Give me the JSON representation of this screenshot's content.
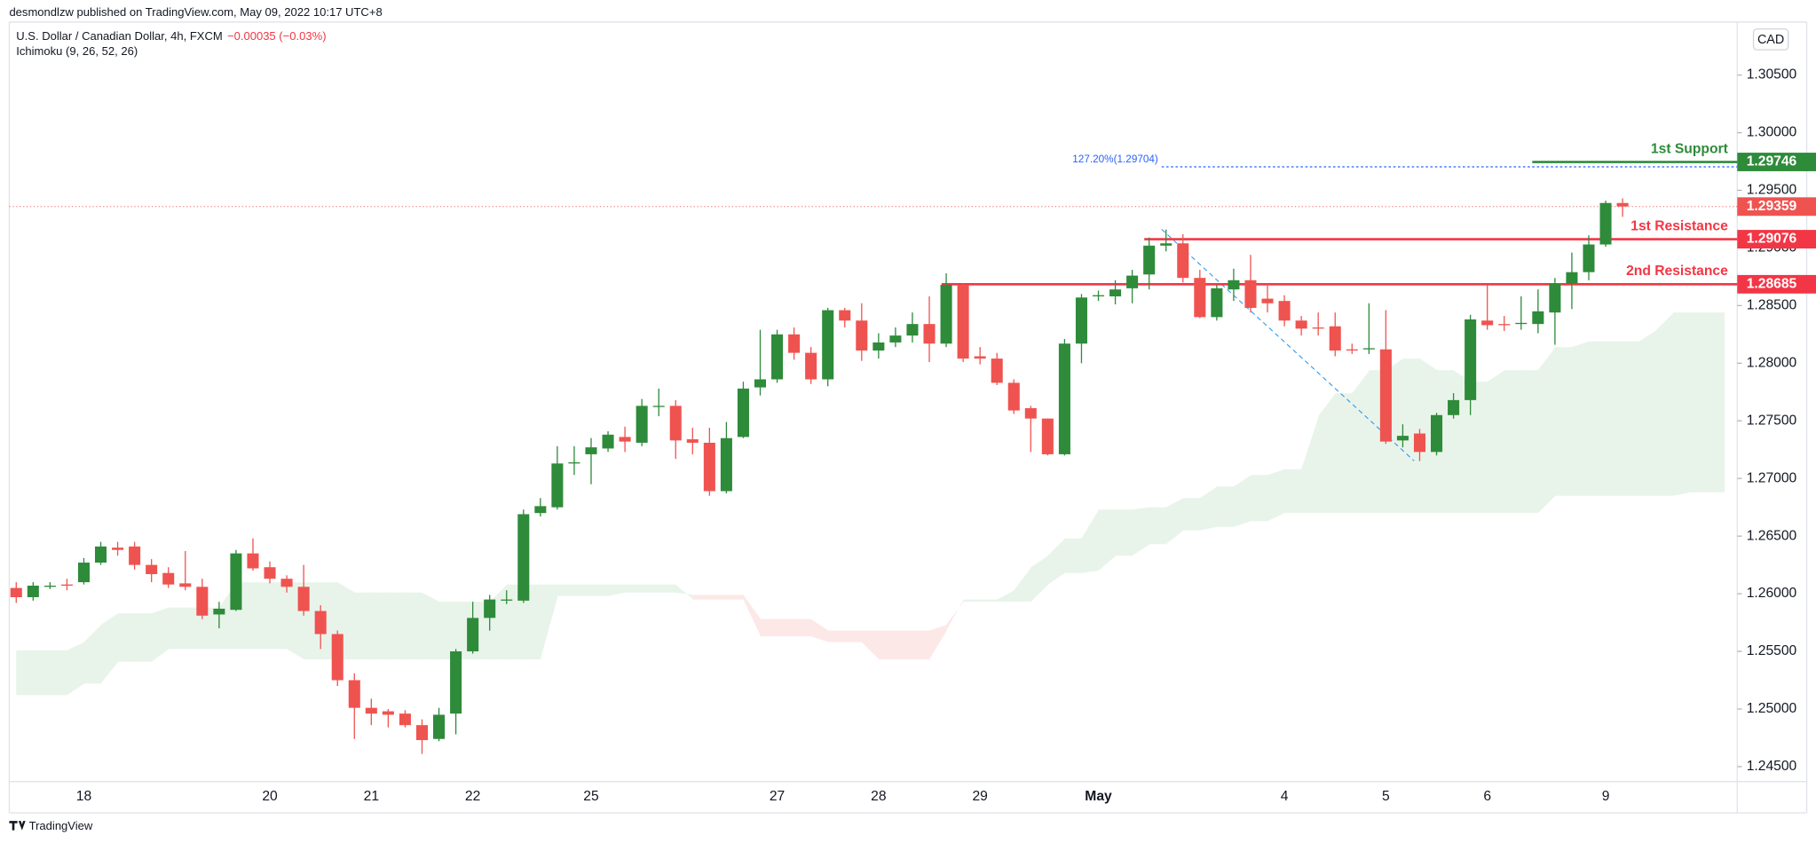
{
  "header": {
    "publisher": "desmondlzw published on TradingView.com, May 09, 2022 10:17 UTC+8",
    "symbol": "U.S. Dollar / Canadian Dollar, 4h, FXCM",
    "change": "−0.00035 (−0.03%)",
    "indicator": "Ichimoku (9, 26, 52, 26)"
  },
  "footer": "TradingView",
  "chart_data": {
    "type": "candlestick",
    "currency": "CAD",
    "categories": [
      null,
      null,
      null,
      null,
      "18",
      null,
      null,
      null,
      null,
      null,
      null,
      null,
      null,
      null,
      null,
      "20",
      null,
      null,
      null,
      null,
      null,
      "21",
      null,
      null,
      null,
      null,
      null,
      "22",
      null,
      null,
      null,
      null,
      null,
      null,
      "25",
      null,
      null,
      null,
      null,
      null,
      null,
      null,
      null,
      null,
      null,
      "27",
      null,
      null,
      null,
      null,
      null,
      "28",
      null,
      null,
      null,
      null,
      null,
      "29",
      null,
      null,
      null,
      null,
      null,
      null,
      "May",
      null,
      null,
      null,
      null,
      null,
      null,
      null,
      null,
      null,
      null,
      "4",
      null,
      null,
      null,
      null,
      null,
      "5",
      null,
      null,
      null,
      null,
      null,
      "6",
      null,
      null,
      null,
      null,
      null,
      null,
      "9",
      null,
      null,
      null,
      null,
      null,
      null,
      null
    ],
    "open": [
      1.2605,
      1.2597,
      1.2607,
      1.2608,
      1.261,
      1.2627,
      1.264,
      1.2641,
      1.2625,
      1.2618,
      1.2609,
      1.2606,
      1.2582,
      1.2586,
      1.2635,
      1.2623,
      1.2613,
      1.2606,
      1.2585,
      1.2565,
      1.2525,
      1.2501,
      1.2498,
      1.2496,
      1.2486,
      1.2474,
      1.2496,
      1.255,
      1.2579,
      1.2595,
      1.2594,
      1.267,
      1.2675,
      1.2714,
      1.2721,
      1.2726,
      1.2736,
      1.2731,
      1.2763,
      1.2763,
      1.2734,
      1.2731,
      1.2689,
      1.2736,
      1.2779,
      1.2786,
      1.2825,
      1.2809,
      1.2786,
      1.2846,
      1.2837,
      1.2811,
      1.2818,
      1.2824,
      1.2834,
      1.2817,
      1.2868,
      1.2806,
      1.2804,
      1.2783,
      1.2761,
      1.2752,
      1.2721,
      1.2817,
      1.2858,
      1.2858,
      1.2865,
      1.2877,
      1.2902,
      1.2904,
      1.2874,
      1.284,
      1.2864,
      1.2872,
      1.2856,
      1.2854,
      1.2837,
      1.2831,
      1.2832,
      1.2812,
      1.2812,
      1.2812,
      1.2733,
      1.2739,
      1.2723,
      1.2755,
      1.2768,
      1.2837,
      1.2834,
      1.2834,
      1.2834,
      1.2844,
      1.2869,
      1.2879,
      1.2903,
      1.2939,
      null,
      null,
      null,
      null,
      null,
      null
    ],
    "high": [
      1.261,
      1.261,
      1.261,
      1.2613,
      1.2631,
      1.2645,
      1.2645,
      1.2645,
      1.263,
      1.2623,
      1.2637,
      1.2613,
      1.2593,
      1.2638,
      1.2648,
      1.2628,
      1.2616,
      1.2625,
      1.259,
      1.2568,
      1.2531,
      1.2509,
      1.25,
      1.2499,
      1.2491,
      1.2501,
      1.2552,
      1.2593,
      1.2599,
      1.2603,
      1.2673,
      1.2683,
      1.2728,
      1.2728,
      1.2735,
      1.2741,
      1.2745,
      1.2769,
      1.2778,
      1.2768,
      1.2744,
      1.2744,
      1.2749,
      1.2784,
      1.2829,
      1.2829,
      1.2831,
      1.2814,
      1.2848,
      1.2848,
      1.2852,
      1.2826,
      1.2831,
      1.2844,
      1.2858,
      1.2878,
      1.2869,
      1.2814,
      1.2809,
      1.2786,
      1.2763,
      1.2752,
      1.2821,
      1.286,
      1.2863,
      1.2872,
      1.2881,
      1.2909,
      1.2916,
      1.2912,
      1.2881,
      1.2868,
      1.2882,
      1.2894,
      1.2869,
      1.2859,
      1.2841,
      1.2844,
      1.2844,
      1.2817,
      1.2852,
      1.2846,
      1.2747,
      1.2743,
      1.2757,
      1.2774,
      1.2842,
      1.2868,
      1.2841,
      1.2858,
      1.2864,
      1.2874,
      1.2896,
      1.2911,
      1.2941,
      1.2943,
      null,
      null,
      null,
      null,
      null,
      null
    ],
    "low": [
      1.2592,
      1.2594,
      1.2604,
      1.2603,
      1.2608,
      1.2625,
      1.2633,
      1.2621,
      1.261,
      1.2605,
      1.2603,
      1.2578,
      1.257,
      1.2585,
      1.262,
      1.2609,
      1.2601,
      1.2581,
      1.2552,
      1.252,
      1.2474,
      1.2486,
      1.2484,
      1.2484,
      1.2461,
      1.2472,
      1.2478,
      1.2548,
      1.2568,
      1.2591,
      1.2592,
      1.2667,
      1.2673,
      1.2703,
      1.2695,
      1.2723,
      1.2723,
      1.2728,
      1.2754,
      1.2717,
      1.2721,
      1.2685,
      1.2687,
      1.2735,
      1.2772,
      1.2783,
      1.2803,
      1.2782,
      1.278,
      1.2831,
      1.2802,
      1.2804,
      1.2814,
      1.2818,
      1.2801,
      1.2814,
      1.2801,
      1.2799,
      1.2781,
      1.2756,
      1.2723,
      1.272,
      1.272,
      1.28,
      1.2854,
      1.2851,
      1.2852,
      1.2864,
      1.2897,
      1.287,
      1.2839,
      1.2837,
      1.2854,
      1.2844,
      1.2844,
      1.2832,
      1.2824,
      1.2824,
      1.2806,
      1.2808,
      1.2808,
      1.273,
      1.2727,
      1.2715,
      1.272,
      1.2752,
      1.2755,
      1.2829,
      1.2828,
      1.2829,
      1.2826,
      1.2816,
      1.2847,
      1.2872,
      1.2901,
      1.2927,
      null,
      null,
      null,
      null,
      null,
      null
    ],
    "close": [
      1.2597,
      1.2607,
      1.2607,
      1.2607,
      1.2627,
      1.2641,
      1.2638,
      1.2625,
      1.2617,
      1.2608,
      1.2606,
      1.2581,
      1.2587,
      1.2635,
      1.2622,
      1.2613,
      1.2606,
      1.2585,
      1.2565,
      1.2525,
      1.2501,
      1.2496,
      1.2495,
      1.2486,
      1.2473,
      1.2495,
      1.255,
      1.2579,
      1.2595,
      1.2595,
      1.2669,
      1.2676,
      1.2713,
      1.2714,
      1.2727,
      1.2738,
      1.2732,
      1.2763,
      1.2763,
      1.2733,
      1.2731,
      1.2689,
      1.2735,
      1.2778,
      1.2786,
      1.2825,
      1.2809,
      1.2786,
      1.2846,
      1.2837,
      1.2811,
      1.2818,
      1.2824,
      1.2834,
      1.2817,
      1.2868,
      1.2804,
      1.2804,
      1.2783,
      1.2759,
      1.2752,
      1.2721,
      1.2817,
      1.2857,
      1.2859,
      1.2864,
      1.2876,
      1.2902,
      1.2904,
      1.2874,
      1.284,
      1.2865,
      1.2872,
      1.2848,
      1.2852,
      1.2837,
      1.283,
      1.283,
      1.2811,
      1.2811,
      1.2813,
      1.2732,
      1.2737,
      1.2723,
      1.2755,
      1.2768,
      1.2838,
      1.2833,
      1.2833,
      1.2835,
      1.2845,
      1.2869,
      1.2879,
      1.2903,
      1.2939,
      1.2936,
      null,
      null,
      null,
      null,
      null,
      null
    ],
    "up_color": "#2e8b3a",
    "down_color": "#ef5350",
    "cloud": {
      "up_color": "#e8f4ea",
      "down_color": "#fde8e8",
      "span_a": [
        1.2551,
        1.2551,
        1.2551,
        1.2551,
        1.2558,
        1.2573,
        1.2583,
        1.2583,
        1.2583,
        1.2588,
        1.2588,
        1.2588,
        1.2588,
        1.261,
        1.261,
        1.261,
        1.261,
        1.261,
        1.261,
        1.261,
        1.2601,
        1.2601,
        1.2601,
        1.2601,
        1.2601,
        1.2593,
        1.2593,
        1.2593,
        1.2593,
        1.2608,
        1.2608,
        1.2608,
        1.2608,
        1.2608,
        1.2608,
        1.2608,
        1.2608,
        1.2608,
        1.2608,
        1.2608,
        1.2595,
        1.2595,
        1.2595,
        1.2595,
        1.2563,
        1.2563,
        1.2563,
        1.2563,
        1.2558,
        1.2558,
        1.2558,
        1.2543,
        1.2543,
        1.2543,
        1.2543,
        1.2568,
        1.2595,
        1.2595,
        1.2595,
        1.2603,
        1.2623,
        1.2633,
        1.2648,
        1.2648,
        1.2673,
        1.2673,
        1.2673,
        1.2675,
        1.2675,
        1.2683,
        1.2683,
        1.2693,
        1.2693,
        1.2703,
        1.2703,
        1.2708,
        1.2708,
        1.2754,
        1.2774,
        1.2774,
        1.2794,
        1.2794,
        1.2804,
        1.2804,
        1.2794,
        1.2794,
        1.2784,
        1.2784,
        1.2794,
        1.2794,
        1.2794,
        1.2814,
        1.2814,
        1.2819,
        1.2819,
        1.2819,
        1.2819,
        1.2829,
        1.2844,
        1.2844,
        1.2844,
        1.2844
      ],
      "span_b": [
        1.2512,
        1.2512,
        1.2512,
        1.2512,
        1.2522,
        1.2522,
        1.2541,
        1.2541,
        1.2541,
        1.2552,
        1.2552,
        1.2552,
        1.2552,
        1.2552,
        1.2552,
        1.2552,
        1.2552,
        1.2543,
        1.2543,
        1.2543,
        1.2543,
        1.2543,
        1.2543,
        1.2543,
        1.2543,
        1.2543,
        1.2543,
        1.2543,
        1.2543,
        1.2543,
        1.2543,
        1.2543,
        1.2598,
        1.2598,
        1.2598,
        1.2598,
        1.2601,
        1.2601,
        1.2601,
        1.2601,
        1.2599,
        1.2599,
        1.2599,
        1.2599,
        1.2578,
        1.2578,
        1.2578,
        1.2578,
        1.2568,
        1.2568,
        1.2568,
        1.2568,
        1.2568,
        1.2568,
        1.2568,
        1.2573,
        1.2593,
        1.2593,
        1.2593,
        1.2593,
        1.2593,
        1.2608,
        1.2618,
        1.2618,
        1.262,
        1.2633,
        1.2633,
        1.2643,
        1.2643,
        1.2655,
        1.2655,
        1.2658,
        1.2658,
        1.2663,
        1.2663,
        1.267,
        1.267,
        1.267,
        1.267,
        1.267,
        1.267,
        1.267,
        1.267,
        1.267,
        1.267,
        1.267,
        1.267,
        1.267,
        1.267,
        1.267,
        1.267,
        1.2685,
        1.2685,
        1.2685,
        1.2685,
        1.2685,
        1.2685,
        1.2685,
        1.2685,
        1.2688,
        1.2688,
        1.2688
      ]
    },
    "ylim": [
      1.2437,
      1.3095
    ],
    "yticks": [
      {
        "value": 1.245,
        "label": "1.24500"
      },
      {
        "value": 1.25,
        "label": "1.25000"
      },
      {
        "value": 1.255,
        "label": "1.25500"
      },
      {
        "value": 1.26,
        "label": "1.26000"
      },
      {
        "value": 1.265,
        "label": "1.26500"
      },
      {
        "value": 1.27,
        "label": "1.27000"
      },
      {
        "value": 1.275,
        "label": "1.27500"
      },
      {
        "value": 1.28,
        "label": "1.28000"
      },
      {
        "value": 1.285,
        "label": "1.28500"
      },
      {
        "value": 1.29,
        "label": "1.29000"
      },
      {
        "value": 1.295,
        "label": "1.29500"
      },
      {
        "value": 1.3,
        "label": "1.30000"
      },
      {
        "value": 1.305,
        "label": "1.30500"
      }
    ],
    "grid": false,
    "last_price": 1.29359,
    "levels": [
      {
        "name": "1st Support",
        "value": 1.29746,
        "color": "#2e8b3a"
      },
      {
        "name": "1st Resistance",
        "value": 1.29076,
        "color": "#f23645"
      },
      {
        "name": "2nd Resistance",
        "value": 1.28685,
        "color": "#f23645"
      }
    ],
    "fib": {
      "label": "127.20%(1.29704)",
      "value": 1.29704,
      "color": "#2962ff"
    }
  }
}
